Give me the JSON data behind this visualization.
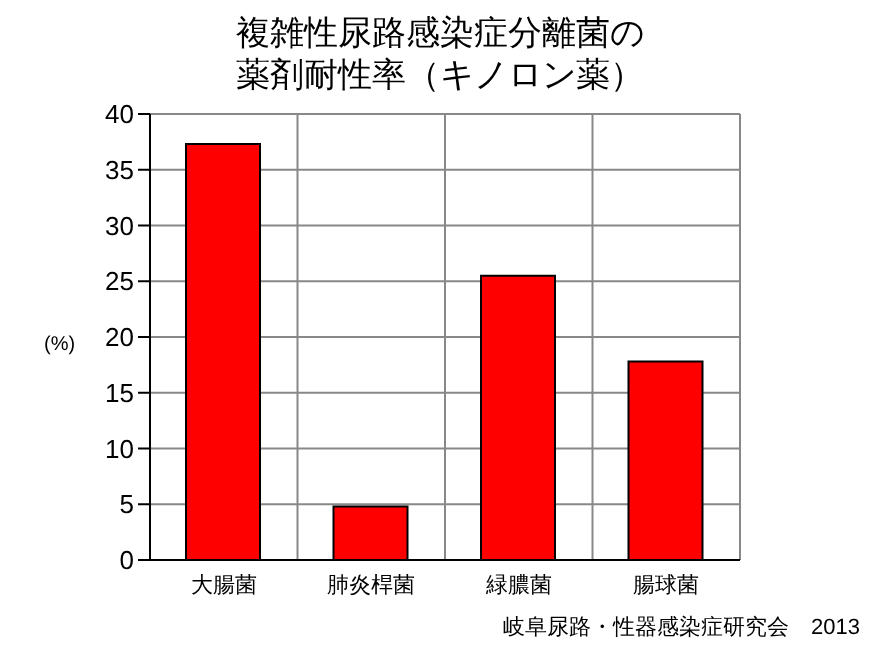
{
  "chart_data": {
    "type": "bar",
    "title": "複雑性尿路感染症分離菌の薬剤耐性率（キノロン薬）",
    "ylabel": "(%)",
    "categories": [
      "大腸菌",
      "肺炎桿菌",
      "緑膿菌",
      "腸球菌"
    ],
    "values": [
      37.3,
      4.8,
      25.5,
      17.8
    ],
    "color": "#ff0000",
    "ylim": [
      0,
      40
    ],
    "yticks": [
      0,
      5,
      10,
      15,
      20,
      25,
      30,
      35,
      40
    ],
    "grid": true,
    "annotations": [
      "岐阜尿路・性器感染症研究会　2013"
    ]
  }
}
